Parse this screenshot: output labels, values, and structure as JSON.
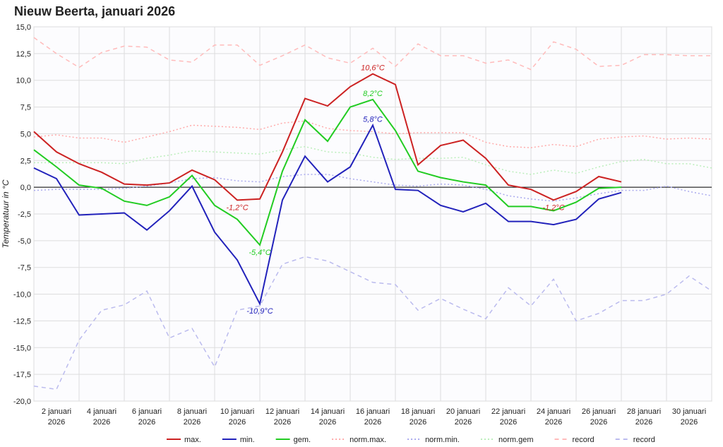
{
  "chart_data": {
    "type": "line",
    "title": "Nieuw Beerta, januari 2026",
    "y_label": "Temperatuur in °C",
    "categories": [
      null,
      "2 januari 2026",
      null,
      "4 januari 2026",
      null,
      "6 januari 2026",
      null,
      "8 januari 2026",
      null,
      "10 januari 2026",
      null,
      "12 januari 2026",
      null,
      "14 januari 2026",
      null,
      "16 januari 2026",
      null,
      "18 januari 2026",
      null,
      "20 januari 2026",
      null,
      "22 januari 2026",
      null,
      "24 januari 2026",
      null,
      "26 januari 2026",
      null,
      "28 januari 2026",
      null,
      "30 januari 2026",
      null
    ],
    "ylim": [
      -20,
      15
    ],
    "yticks": [
      {
        "value": -20,
        "label": "-20,0"
      },
      {
        "value": -17.5,
        "label": "-17,5"
      },
      {
        "value": -15,
        "label": "-15,0"
      },
      {
        "value": -12.5,
        "label": "-12,5"
      },
      {
        "value": -10,
        "label": "-10,0"
      },
      {
        "value": -7.5,
        "label": "-7,5"
      },
      {
        "value": -5,
        "label": "-5,0"
      },
      {
        "value": -2.5,
        "label": "-2,5"
      },
      {
        "value": 0,
        "label": "0,0"
      },
      {
        "value": 2.5,
        "label": "2,5"
      },
      {
        "value": 5,
        "label": "5,0"
      },
      {
        "value": 7.5,
        "label": "7,5"
      },
      {
        "value": 10,
        "label": "10,0"
      },
      {
        "value": 12.5,
        "label": "12,5"
      },
      {
        "value": 15,
        "label": "15,0"
      }
    ],
    "grid": true,
    "legend": "bottom",
    "series": [
      {
        "name": "max.",
        "color": "#cc2222",
        "dash": "solid",
        "values": [
          5.2,
          3.3,
          2.2,
          1.4,
          0.3,
          0.2,
          0.4,
          1.6,
          0.7,
          -1.2,
          -1.1,
          3.3,
          8.3,
          7.6,
          9.4,
          10.6,
          9.6,
          2.1,
          3.9,
          4.4,
          2.7,
          0.2,
          -0.2,
          -1.2,
          -0.4,
          1.0,
          0.5,
          null,
          null,
          null,
          null
        ],
        "value_labels": [
          null,
          null,
          null,
          null,
          null,
          null,
          null,
          null,
          null,
          "-1,2°C",
          null,
          null,
          null,
          null,
          null,
          "10,6°C",
          null,
          null,
          null,
          null,
          null,
          null,
          null,
          "-1,2°C",
          null,
          null,
          null,
          null,
          null,
          null,
          null
        ]
      },
      {
        "name": "min.",
        "color": "#2222bb",
        "dash": "solid",
        "values": [
          1.8,
          0.8,
          -2.6,
          -2.5,
          -2.4,
          -4.0,
          -2.2,
          0.1,
          -4.2,
          -6.8,
          -10.9,
          -1.2,
          2.9,
          0.5,
          1.9,
          5.8,
          -0.2,
          -0.3,
          -1.7,
          -2.3,
          -1.5,
          -3.2,
          -3.2,
          -3.5,
          -3.0,
          -1.1,
          -0.5,
          null,
          null,
          null,
          null
        ],
        "value_labels": [
          null,
          null,
          null,
          null,
          null,
          null,
          null,
          null,
          null,
          null,
          "-10,9°C",
          null,
          null,
          null,
          null,
          "5,8°C",
          null,
          null,
          null,
          null,
          null,
          null,
          null,
          null,
          null,
          null,
          null,
          null,
          null,
          null,
          null
        ]
      },
      {
        "name": "gem.",
        "color": "#22cc22",
        "dash": "solid",
        "values": [
          3.5,
          1.9,
          0.2,
          -0.1,
          -1.3,
          -1.7,
          -0.9,
          1.1,
          -1.7,
          -3.0,
          -5.4,
          1.5,
          6.3,
          4.3,
          7.5,
          8.2,
          5.3,
          1.5,
          0.9,
          0.5,
          0.2,
          -1.8,
          -1.8,
          -2.2,
          -1.4,
          -0.1,
          0.0,
          null,
          null,
          null,
          null
        ],
        "value_labels": [
          null,
          null,
          null,
          null,
          null,
          null,
          null,
          null,
          null,
          null,
          "-5,4°C",
          null,
          null,
          null,
          null,
          "8,2°C",
          null,
          null,
          null,
          null,
          null,
          null,
          null,
          null,
          null,
          null,
          null,
          null,
          null,
          null,
          null
        ]
      },
      {
        "name": "norm.max.",
        "color": "#ffaaaa",
        "dash": "dotted",
        "values": [
          4.7,
          4.9,
          4.6,
          4.6,
          4.2,
          4.7,
          5.2,
          5.8,
          5.7,
          5.6,
          5.4,
          6.0,
          6.2,
          5.5,
          5.3,
          5.2,
          5.0,
          5.1,
          5.1,
          5.1,
          4.2,
          3.8,
          3.7,
          4.0,
          3.8,
          4.5,
          4.7,
          4.8,
          4.5,
          4.6,
          4.5
        ]
      },
      {
        "name": "norm.min.",
        "color": "#aaaaee",
        "dash": "dotted",
        "values": [
          -0.3,
          -0.2,
          -0.2,
          -0.2,
          -0.1,
          0.1,
          0.4,
          0.8,
          0.9,
          0.6,
          0.5,
          1.0,
          1.2,
          1.2,
          0.8,
          0.5,
          0.2,
          0.1,
          0.3,
          0.2,
          -0.2,
          -0.8,
          -1.1,
          -1.3,
          -1.0,
          -0.6,
          -0.3,
          -0.3,
          0.1,
          -0.4,
          -0.8
        ]
      },
      {
        "name": "norm.gem",
        "color": "#bbeebb",
        "dash": "dotted",
        "values": [
          2.3,
          2.3,
          2.3,
          2.3,
          2.2,
          2.7,
          3.0,
          3.4,
          3.3,
          3.2,
          3.1,
          3.5,
          3.8,
          3.3,
          3.2,
          2.8,
          2.6,
          2.7,
          2.7,
          2.8,
          2.1,
          1.5,
          1.2,
          1.6,
          1.3,
          1.9,
          2.4,
          2.6,
          2.2,
          2.2,
          1.8
        ]
      },
      {
        "name": "record",
        "color": "#ffbbbb",
        "dash": "dashed",
        "values": [
          14.0,
          12.5,
          11.2,
          12.6,
          13.2,
          13.1,
          11.9,
          11.7,
          13.3,
          13.3,
          11.4,
          12.3,
          13.3,
          12.1,
          11.6,
          13.0,
          11.3,
          13.4,
          12.3,
          12.3,
          11.6,
          11.9,
          11.0,
          13.6,
          12.9,
          11.3,
          11.4,
          12.4,
          12.4,
          12.3,
          12.3
        ]
      },
      {
        "name": "record",
        "color": "#bbbbee",
        "dash": "dashed",
        "values": [
          -18.6,
          -18.9,
          -14.3,
          -11.5,
          -11.0,
          -9.7,
          -14.1,
          -13.2,
          -16.8,
          -11.5,
          -11.1,
          -7.2,
          -6.5,
          -6.9,
          -7.9,
          -8.9,
          -9.1,
          -11.5,
          -10.4,
          -11.4,
          -12.3,
          -9.4,
          -11.1,
          -8.6,
          -12.5,
          -11.8,
          -10.6,
          -10.6,
          -10.0,
          -8.3,
          -9.7
        ]
      }
    ]
  }
}
